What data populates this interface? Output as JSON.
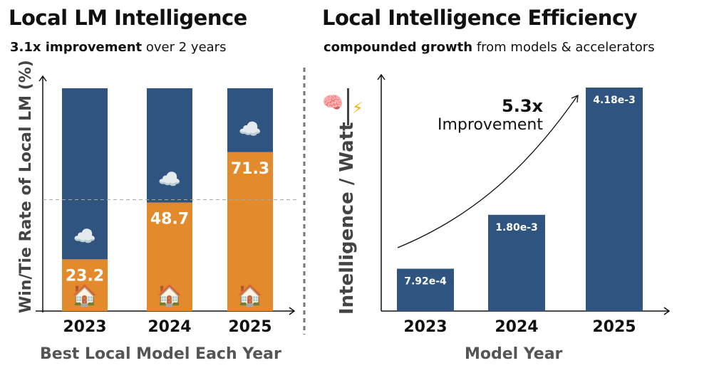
{
  "colors": {
    "cloud_bar": "#2f5480",
    "local_bar": "#e38b2c"
  },
  "chart_data": [
    {
      "type": "bar",
      "stacked": true,
      "title": "Local LM Intelligence",
      "subtitle_bold": "3.1x improvement",
      "subtitle_rest": " over 2 years",
      "xlabel": "Best Local Model Each Year",
      "ylabel": "Win/Tie Rate of Local LM (%)",
      "categories": [
        "2023",
        "2024",
        "2025"
      ],
      "series": [
        {
          "name": "local",
          "icon": "house-icon",
          "values": [
            23.2,
            48.7,
            71.3
          ]
        },
        {
          "name": "cloud",
          "icon": "cloud-icon",
          "values": [
            76.8,
            51.3,
            28.7
          ]
        }
      ],
      "labels": [
        "23.2",
        "48.7",
        "71.3"
      ],
      "ylim": [
        0,
        100
      ],
      "reference_line": 50
    },
    {
      "type": "bar",
      "title": "Local Intelligence Efficiency",
      "subtitle_bold": "compounded growth",
      "subtitle_rest": " from models & accelerators",
      "xlabel": "Model Year",
      "ylabel": "Intelligence / Watt",
      "categories": [
        "2023",
        "2024",
        "2025"
      ],
      "values": [
        0.000792,
        0.0018,
        0.00418
      ],
      "labels": [
        "7.92e-4",
        "1.80e-3",
        "4.18e-3"
      ],
      "annotation_value": "5.3x",
      "annotation_text": "Improvement",
      "ylim": [
        0,
        0.00418
      ]
    }
  ]
}
